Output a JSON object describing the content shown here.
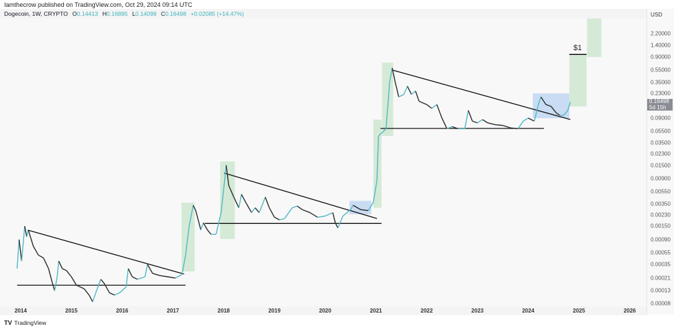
{
  "header": {
    "published": "Iamthecrow published on TradingView.com, Oct 29, 2024 09:14 UTC"
  },
  "legend": {
    "symbol": "Dogecoin, 1W, CRYPTO",
    "o_label": "O",
    "o": "0.14413",
    "h_label": "H",
    "h": "0.16895",
    "l_label": "L",
    "l": "0.14098",
    "c_label": "C",
    "c": "0.16498",
    "change": "+0.02085 (+14.47%)"
  },
  "footer": {
    "brand": "TradingView",
    "logo": "TV"
  },
  "colors": {
    "up": "#4fb8c6",
    "down": "#2b2b2b",
    "green_box": "#d5ead6",
    "blue_box": "#c9dcf3",
    "line": "#111111"
  },
  "chart_data": {
    "type": "candlestick-line",
    "currency": "USD",
    "y_scale": "log",
    "ylim": [
      8e-05,
      3.9
    ],
    "xlim": [
      2013.9,
      2026.35
    ],
    "y_ticks": [
      "2.20000",
      "1.40000",
      "0.90000",
      "0.55000",
      "0.35000",
      "0.23000",
      "0.09000",
      "0.05500",
      "0.03500",
      "0.02300",
      "0.01500",
      "0.00900",
      "0.00550",
      "0.00350",
      "0.00230",
      "0.00150",
      "0.00090",
      "0.00055",
      "0.00035",
      "0.00021",
      "0.00013",
      "0.00008"
    ],
    "x_ticks": [
      "2014",
      "2015",
      "2016",
      "2017",
      "2018",
      "2019",
      "2020",
      "2021",
      "2022",
      "2023",
      "2024",
      "2025",
      "2026"
    ],
    "last_price": "0.16498",
    "countdown": "5d 15h",
    "price_path": [
      [
        2013.93,
        0.0003
      ],
      [
        2013.97,
        0.0009
      ],
      [
        2014.02,
        0.0004
      ],
      [
        2014.08,
        0.0015
      ],
      [
        2014.12,
        0.001
      ],
      [
        2014.15,
        0.0013
      ],
      [
        2014.25,
        0.0007
      ],
      [
        2014.35,
        0.0005
      ],
      [
        2014.45,
        0.00045
      ],
      [
        2014.55,
        0.0003
      ],
      [
        2014.62,
        0.00018
      ],
      [
        2014.67,
        0.00013
      ],
      [
        2014.72,
        0.00022
      ],
      [
        2014.75,
        0.0004
      ],
      [
        2014.82,
        0.0003
      ],
      [
        2014.9,
        0.00028
      ],
      [
        2015.0,
        0.00022
      ],
      [
        2015.1,
        0.00016
      ],
      [
        2015.25,
        0.00014
      ],
      [
        2015.35,
        0.00011
      ],
      [
        2015.42,
        8.5e-05
      ],
      [
        2015.48,
        0.00012
      ],
      [
        2015.58,
        0.0002
      ],
      [
        2015.65,
        0.00017
      ],
      [
        2015.75,
        0.00012
      ],
      [
        2015.85,
        0.00011
      ],
      [
        2015.95,
        0.00012
      ],
      [
        2016.08,
        0.00015
      ],
      [
        2016.12,
        0.0003
      ],
      [
        2016.2,
        0.00022
      ],
      [
        2016.3,
        0.0002
      ],
      [
        2016.45,
        0.00022
      ],
      [
        2016.5,
        0.00035
      ],
      [
        2016.6,
        0.00025
      ],
      [
        2016.75,
        0.00023
      ],
      [
        2016.9,
        0.00022
      ],
      [
        2017.05,
        0.00021
      ],
      [
        2017.18,
        0.00024
      ],
      [
        2017.25,
        0.0005
      ],
      [
        2017.32,
        0.0015
      ],
      [
        2017.4,
        0.0033
      ],
      [
        2017.45,
        0.0027
      ],
      [
        2017.55,
        0.0013
      ],
      [
        2017.6,
        0.0017
      ],
      [
        2017.68,
        0.0013
      ],
      [
        2017.75,
        0.0011
      ],
      [
        2017.85,
        0.0011
      ],
      [
        2017.95,
        0.0025
      ],
      [
        2018.02,
        0.0085
      ],
      [
        2018.05,
        0.015
      ],
      [
        2018.1,
        0.007
      ],
      [
        2018.2,
        0.0045
      ],
      [
        2018.3,
        0.003
      ],
      [
        2018.35,
        0.005
      ],
      [
        2018.45,
        0.0035
      ],
      [
        2018.55,
        0.0025
      ],
      [
        2018.62,
        0.003
      ],
      [
        2018.7,
        0.0025
      ],
      [
        2018.82,
        0.0045
      ],
      [
        2018.9,
        0.003
      ],
      [
        2019.0,
        0.0021
      ],
      [
        2019.1,
        0.0019
      ],
      [
        2019.2,
        0.002
      ],
      [
        2019.35,
        0.003
      ],
      [
        2019.45,
        0.0032
      ],
      [
        2019.55,
        0.0028
      ],
      [
        2019.7,
        0.0025
      ],
      [
        2019.85,
        0.0021
      ],
      [
        2020.0,
        0.0022
      ],
      [
        2020.15,
        0.0025
      ],
      [
        2020.2,
        0.0017
      ],
      [
        2020.25,
        0.0014
      ],
      [
        2020.35,
        0.0022
      ],
      [
        2020.5,
        0.0028
      ],
      [
        2020.55,
        0.0033
      ],
      [
        2020.7,
        0.0028
      ],
      [
        2020.85,
        0.0027
      ],
      [
        2020.95,
        0.0037
      ],
      [
        2021.02,
        0.0085
      ],
      [
        2021.05,
        0.045
      ],
      [
        2021.1,
        0.05
      ],
      [
        2021.2,
        0.06
      ],
      [
        2021.27,
        0.35
      ],
      [
        2021.32,
        0.6
      ],
      [
        2021.38,
        0.35
      ],
      [
        2021.45,
        0.2
      ],
      [
        2021.55,
        0.22
      ],
      [
        2021.62,
        0.3
      ],
      [
        2021.7,
        0.22
      ],
      [
        2021.78,
        0.25
      ],
      [
        2021.85,
        0.17
      ],
      [
        2022.0,
        0.15
      ],
      [
        2022.1,
        0.13
      ],
      [
        2022.2,
        0.15
      ],
      [
        2022.3,
        0.09
      ],
      [
        2022.4,
        0.06
      ],
      [
        2022.5,
        0.065
      ],
      [
        2022.62,
        0.06
      ],
      [
        2022.75,
        0.06
      ],
      [
        2022.82,
        0.12
      ],
      [
        2022.9,
        0.08
      ],
      [
        2023.0,
        0.075
      ],
      [
        2023.1,
        0.085
      ],
      [
        2023.2,
        0.075
      ],
      [
        2023.35,
        0.07
      ],
      [
        2023.5,
        0.068
      ],
      [
        2023.65,
        0.062
      ],
      [
        2023.8,
        0.06
      ],
      [
        2023.9,
        0.08
      ],
      [
        2024.0,
        0.09
      ],
      [
        2024.12,
        0.08
      ],
      [
        2024.2,
        0.15
      ],
      [
        2024.25,
        0.2
      ],
      [
        2024.35,
        0.15
      ],
      [
        2024.45,
        0.14
      ],
      [
        2024.55,
        0.11
      ],
      [
        2024.62,
        0.1
      ],
      [
        2024.7,
        0.1
      ],
      [
        2024.78,
        0.12
      ],
      [
        2024.83,
        0.165
      ]
    ],
    "trendlines": [
      [
        [
          2014.14,
          0.00129
        ],
        [
          2017.22,
          0.000244
        ]
      ],
      [
        [
          2018.01,
          0.0112
        ],
        [
          2021.02,
          0.002
        ]
      ],
      [
        [
          2021.33,
          0.553
        ],
        [
          2024.83,
          0.085
        ]
      ]
    ],
    "support_lines": [
      [
        [
          2013.93,
          0.00016
        ],
        [
          2017.25,
          0.00016
        ]
      ],
      [
        [
          2017.63,
          0.00166
        ],
        [
          2021.11,
          0.00166
        ]
      ],
      [
        [
          2021.09,
          0.0607
        ],
        [
          2024.31,
          0.0607
        ]
      ]
    ],
    "green_boxes": [
      [
        2017.17,
        2017.43,
        0.00027,
        0.00365
      ],
      [
        2017.93,
        2018.22,
        0.00092,
        0.0174
      ],
      [
        2020.95,
        2021.11,
        0.003,
        0.085
      ],
      [
        2021.12,
        2021.34,
        0.0455,
        0.736
      ],
      [
        2024.81,
        2025.15,
        0.139,
        1.0
      ],
      [
        2025.16,
        2025.44,
        0.908,
        3.9
      ]
    ],
    "blue_boxes": [
      [
        2020.48,
        2020.91,
        0.00234,
        0.0039
      ],
      [
        2024.09,
        2024.81,
        0.0895,
        0.229
      ]
    ],
    "target": {
      "label": "$1",
      "price": 1.0,
      "from": 2024.81,
      "to": 2025.15
    }
  }
}
